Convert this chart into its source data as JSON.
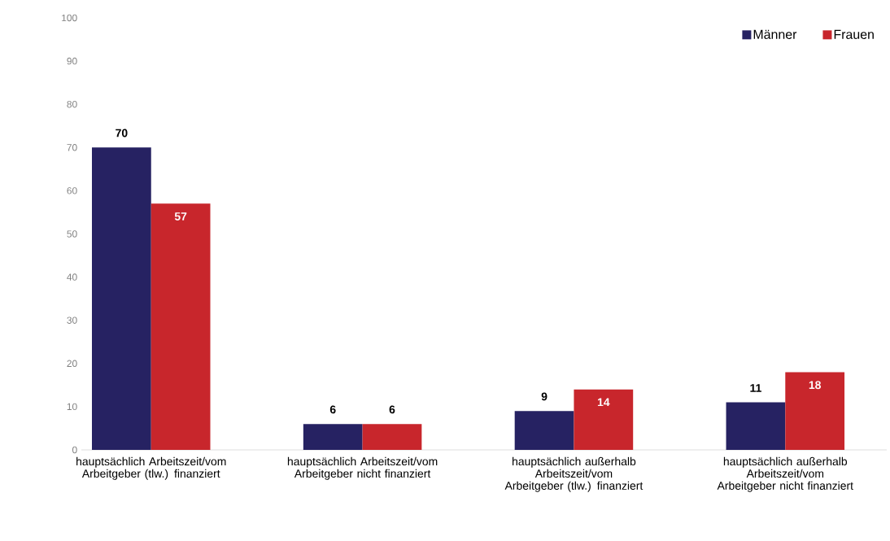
{
  "chart_data": {
    "type": "bar",
    "categories": [
      "hauptsächlich Arbeitszeit/vom Arbeitgeber (tlw.) finanziert",
      "hauptsächlich Arbeitszeit/vom Arbeitgeber nicht finanziert",
      "hauptsächlich außerhalb Arbeitszeit/vom Arbeitgeber (tlw.) finanziert",
      "hauptsächlich außerhalb Arbeitszeit/vom Arbeitgeber nicht finanziert"
    ],
    "series": [
      {
        "name": "Männer",
        "color": "#262262",
        "values": [
          70,
          6,
          9,
          11
        ]
      },
      {
        "name": "Frauen",
        "color": "#c8262c",
        "values": [
          57,
          6,
          14,
          18
        ]
      }
    ],
    "ylim": [
      0,
      100
    ],
    "yticks": [
      0,
      10,
      20,
      30,
      40,
      50,
      60,
      70,
      80,
      90,
      100
    ],
    "data_labels": true,
    "legend": "top right",
    "grid": false
  }
}
